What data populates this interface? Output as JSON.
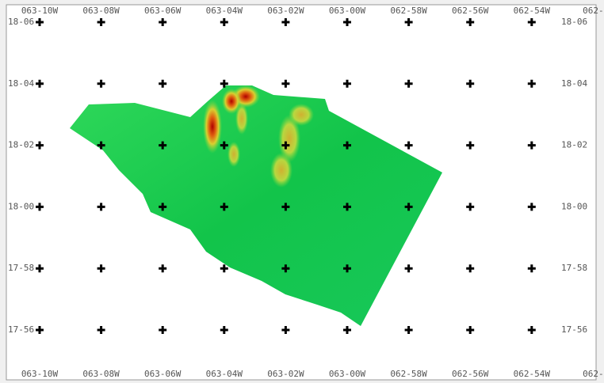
{
  "longitudes": [
    "063-10W",
    "063-08W",
    "063-06W",
    "063-04W",
    "063-02W",
    "063-00W",
    "062-58W",
    "062-56W",
    "062-54W",
    "062-"
  ],
  "latitudes": [
    "18-06",
    "18-04",
    "18-02",
    "18-00",
    "17-58",
    "17-56"
  ]
}
